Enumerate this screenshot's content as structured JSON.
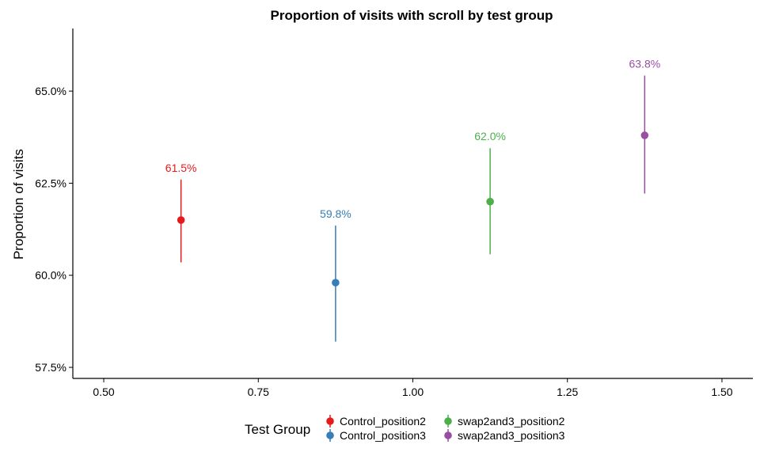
{
  "chart_data": {
    "type": "scatter",
    "title": "Proportion of visits with scroll by test group",
    "xlabel": "",
    "ylabel": "Proportion of visits",
    "xlim": [
      0.45,
      1.55
    ],
    "ylim": [
      57.2,
      66.7
    ],
    "x_ticks": [
      0.5,
      0.75,
      1.0,
      1.25,
      1.5
    ],
    "x_tick_labels": [
      "0.50",
      "0.75",
      "1.00",
      "1.25",
      "1.50"
    ],
    "y_ticks": [
      57.5,
      60.0,
      62.5,
      65.0
    ],
    "y_tick_labels": [
      "57.5%",
      "60.0%",
      "62.5%",
      "65.0%"
    ],
    "grid": false,
    "legend": {
      "title": "Test Group",
      "position": "bottom",
      "entries": [
        "Control_position2",
        "Control_position3",
        "swap2and3_position2",
        "swap2and3_position3"
      ]
    },
    "series": [
      {
        "name": "Control_position2",
        "color": "#E41A1C",
        "x": 0.625,
        "y": 61.5,
        "ymin": 60.35,
        "ymax": 62.6,
        "label": "61.5%"
      },
      {
        "name": "Control_position3",
        "color": "#377EB8",
        "x": 0.875,
        "y": 59.8,
        "ymin": 58.2,
        "ymax": 61.35,
        "label": "59.8%"
      },
      {
        "name": "swap2and3_position2",
        "color": "#4DAF4A",
        "x": 1.125,
        "y": 62.0,
        "ymin": 60.57,
        "ymax": 63.45,
        "label": "62.0%"
      },
      {
        "name": "swap2and3_position3",
        "color": "#984EA3",
        "x": 1.375,
        "y": 63.8,
        "ymin": 62.22,
        "ymax": 65.42,
        "label": "63.8%"
      }
    ]
  }
}
